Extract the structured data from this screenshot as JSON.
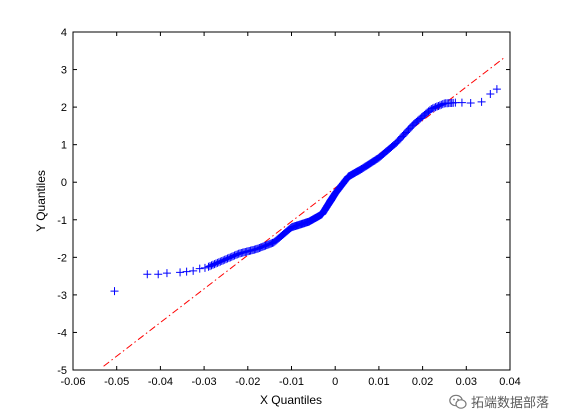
{
  "chart_data": {
    "type": "scatter",
    "title": "",
    "xlabel": "X Quantiles",
    "ylabel": "Y Quantiles",
    "xlim": [
      -0.06,
      0.04
    ],
    "ylim": [
      -5,
      4
    ],
    "xticks": [
      -0.06,
      -0.05,
      -0.04,
      -0.03,
      -0.02,
      -0.01,
      0,
      0.01,
      0.02,
      0.03,
      0.04
    ],
    "xtick_labels": [
      "-0.06",
      "-0.05",
      "-0.04",
      "-0.03",
      "-0.02",
      "-0.01",
      "0",
      "0.01",
      "0.02",
      "0.03",
      "0.04"
    ],
    "yticks": [
      -5,
      -4,
      -3,
      -2,
      -1,
      0,
      1,
      2,
      3,
      4
    ],
    "ytick_labels": [
      "-5",
      "-4",
      "-3",
      "-2",
      "-1",
      "0",
      "1",
      "2",
      "3",
      "4"
    ],
    "grid": false,
    "marker": "+",
    "marker_color": "#0000ff",
    "reference_line": {
      "style": "dash-dot",
      "color": "#ff0000",
      "points": [
        [
          -0.053,
          -4.9
        ],
        [
          0.0385,
          3.3
        ]
      ]
    },
    "anchor_points": [
      [
        -0.0505,
        -2.9
      ],
      [
        -0.043,
        -2.45
      ],
      [
        -0.04,
        -2.45
      ],
      [
        -0.0385,
        -2.42
      ],
      [
        -0.0355,
        -2.4
      ],
      [
        -0.0335,
        -2.38
      ],
      [
        -0.032,
        -2.35
      ],
      [
        -0.03,
        -2.3
      ],
      [
        -0.028,
        -2.2
      ],
      [
        -0.025,
        -2.05
      ],
      [
        -0.022,
        -1.9
      ],
      [
        -0.018,
        -1.78
      ],
      [
        -0.014,
        -1.6
      ],
      [
        -0.01,
        -1.2
      ],
      [
        -0.006,
        -1.05
      ],
      [
        -0.003,
        -0.85
      ],
      [
        0.0,
        -0.3
      ],
      [
        0.003,
        0.15
      ],
      [
        0.006,
        0.35
      ],
      [
        0.01,
        0.65
      ],
      [
        0.014,
        1.05
      ],
      [
        0.018,
        1.55
      ],
      [
        0.022,
        1.95
      ],
      [
        0.025,
        2.1
      ],
      [
        0.028,
        2.12
      ],
      [
        0.031,
        2.12
      ],
      [
        0.033,
        2.15
      ],
      [
        0.035,
        2.3
      ],
      [
        0.0365,
        2.45
      ],
      [
        0.0375,
        2.5
      ]
    ],
    "extreme_points": [
      [
        -0.0505,
        -2.9
      ],
      [
        -0.043,
        -2.45
      ],
      [
        -0.0405,
        -2.45
      ],
      [
        -0.0385,
        -2.42
      ],
      [
        -0.0355,
        -2.4
      ],
      [
        -0.034,
        -2.38
      ],
      [
        -0.0325,
        -2.36
      ],
      [
        -0.031,
        -2.3
      ],
      [
        -0.0298,
        -2.28
      ],
      [
        0.0275,
        2.12
      ],
      [
        0.029,
        2.12
      ],
      [
        0.031,
        2.11
      ],
      [
        0.0335,
        2.14
      ],
      [
        0.0355,
        2.35
      ],
      [
        0.037,
        2.48
      ]
    ],
    "dense_points_count": 260
  },
  "watermark": {
    "text": "拓端数据部落",
    "icon": "wechat-icon"
  }
}
